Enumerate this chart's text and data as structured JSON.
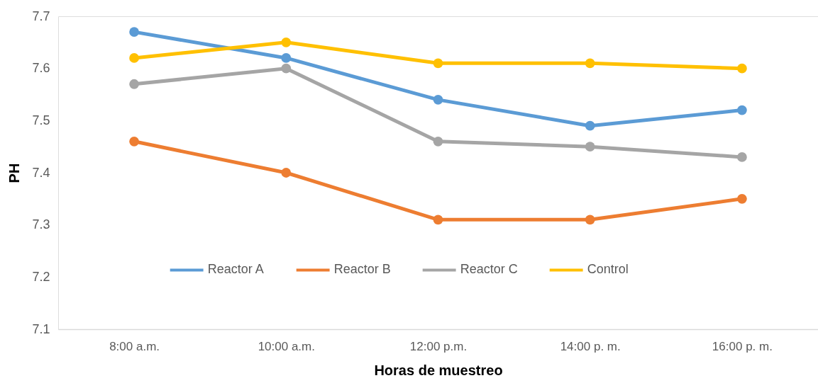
{
  "chart_data": {
    "type": "line",
    "xlabel": "Horas de muestreo",
    "ylabel": "PH",
    "categories": [
      "8:00 a.m.",
      "10:00 a.m.",
      "12:00 p.m.",
      "14:00 p. m.",
      "16:00 p. m."
    ],
    "series": [
      {
        "name": "Reactor A",
        "color": "#5b9bd5",
        "values": [
          7.67,
          7.62,
          7.54,
          7.49,
          7.52
        ]
      },
      {
        "name": "Reactor B",
        "color": "#ed7d31",
        "values": [
          7.46,
          7.4,
          7.31,
          7.31,
          7.35
        ]
      },
      {
        "name": "Reactor C",
        "color": "#a5a5a5",
        "values": [
          7.57,
          7.6,
          7.46,
          7.45,
          7.43
        ]
      },
      {
        "name": "Control",
        "color": "#ffc000",
        "values": [
          7.62,
          7.65,
          7.61,
          7.61,
          7.6
        ]
      }
    ],
    "ylim": [
      7.1,
      7.7
    ],
    "yticks": [
      7.1,
      7.2,
      7.3,
      7.4,
      7.5,
      7.6,
      7.7
    ],
    "legend": "bottom",
    "marker": "circle",
    "line_style": "solid"
  }
}
